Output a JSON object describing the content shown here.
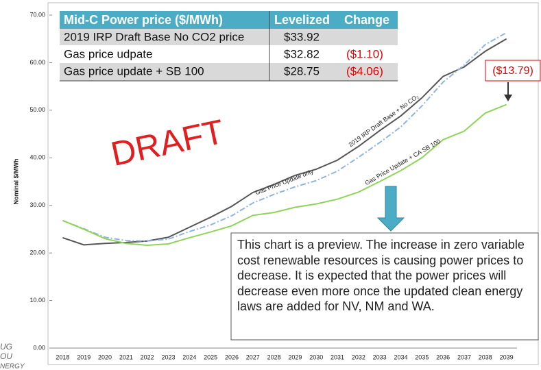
{
  "chart_data": {
    "type": "line",
    "y_axis_label": "Nominal $/MWh",
    "categories": [
      "2018",
      "2019",
      "2020",
      "2021",
      "2022",
      "2023",
      "2024",
      "2025",
      "2026",
      "2027",
      "2028",
      "2029",
      "2030",
      "2031",
      "2032",
      "2033",
      "2034",
      "2035",
      "2036",
      "2037",
      "2038",
      "2039"
    ],
    "series": [
      {
        "name": "2019 IRP Draft Base + No CO₂",
        "color": "#555555",
        "dash": "solid",
        "values": [
          23.2,
          21.7,
          22.0,
          22.2,
          22.5,
          23.3,
          25.4,
          27.5,
          29.8,
          32.7,
          34.4,
          36.3,
          37.6,
          39.5,
          42.4,
          45.7,
          48.8,
          52.6,
          57.1,
          59.1,
          62.4,
          65.0
        ]
      },
      {
        "name": "Gas Price Update only",
        "color": "#8fb4e0",
        "dash": "dashdot",
        "values": [
          26.8,
          25.1,
          23.3,
          22.6,
          22.5,
          22.9,
          24.5,
          25.9,
          27.8,
          30.5,
          32.3,
          33.9,
          35.2,
          37.2,
          40.1,
          43.2,
          46.5,
          50.9,
          55.9,
          59.5,
          63.8,
          66.3
        ]
      },
      {
        "name": "Gas Price Update + CA SB 100",
        "color": "#8ed45a",
        "dash": "solid",
        "values": [
          26.8,
          25.0,
          23.0,
          22.0,
          21.6,
          21.9,
          23.2,
          24.4,
          25.7,
          27.9,
          28.5,
          29.6,
          30.3,
          31.3,
          32.8,
          35.0,
          37.3,
          40.0,
          43.8,
          45.6,
          49.4,
          51.2
        ]
      }
    ],
    "ylim": [
      0,
      70
    ],
    "yticks": [
      {
        "value": 0,
        "label": "0.00"
      },
      {
        "value": 10,
        "label": "10.00"
      },
      {
        "value": 20,
        "label": "20.00"
      },
      {
        "value": 30,
        "label": "30.00"
      },
      {
        "value": 40,
        "label": "40.00"
      },
      {
        "value": 50,
        "label": "50.00"
      },
      {
        "value": 60,
        "label": "60.00"
      },
      {
        "value": 70,
        "label": "70.00"
      }
    ],
    "grid": false,
    "watermark": "DRAFT",
    "difference_label": "($13.79)",
    "note": "This chart is a preview. The increase in zero variable cost renewable resources is causing power prices to decrease.  It is expected that the power prices will decrease even more once the updated clean energy laws are added for NV, NM and WA."
  },
  "table": {
    "header": [
      "Mid-C Power price ($/MWh)",
      "Levelized",
      "Change"
    ],
    "rows": [
      [
        "2019 IRP Draft Base No CO2 price",
        "$33.92",
        ""
      ],
      [
        "Gas price udpate",
        "$32.82",
        "($1.10)"
      ],
      [
        "Gas price update + SB 100",
        "$28.75",
        "($4.06)"
      ]
    ]
  },
  "logo": [
    "UG",
    "OU",
    "NERGY"
  ]
}
